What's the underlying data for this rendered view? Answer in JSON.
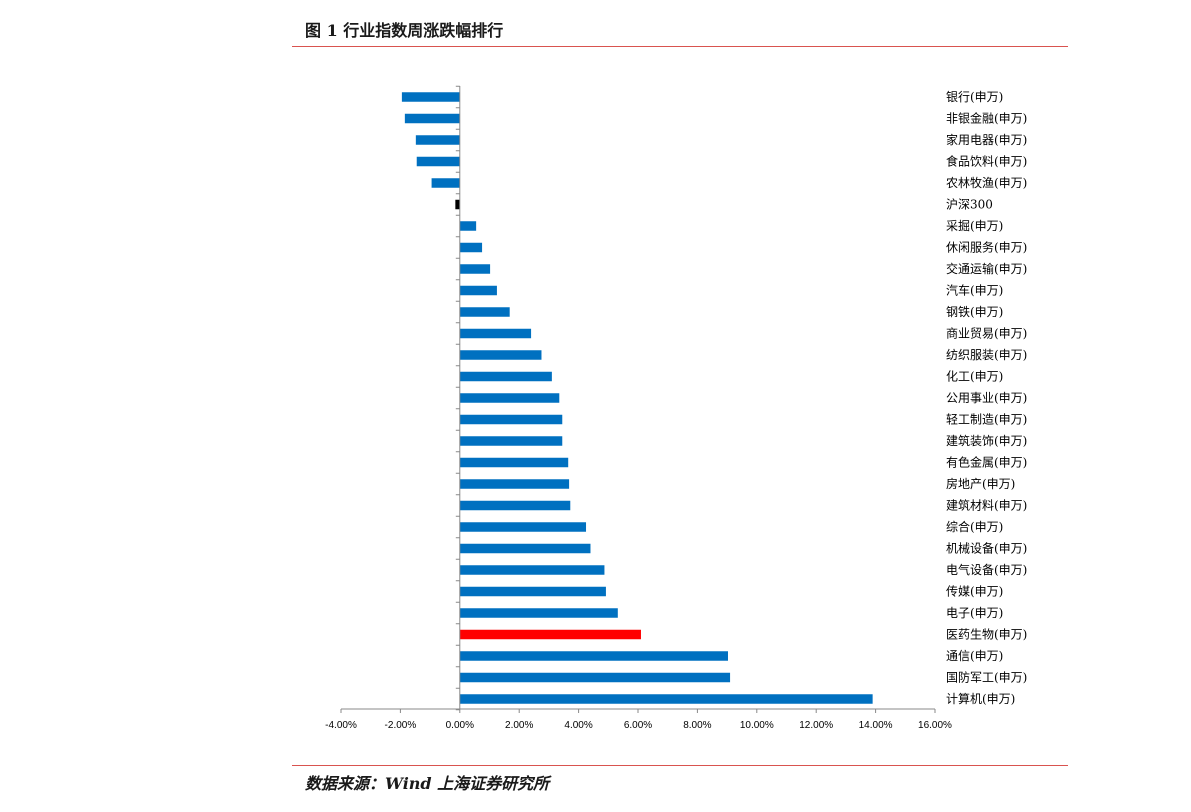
{
  "header": {
    "title": "图 1 行业指数周涨跌幅排行"
  },
  "footer": {
    "source": "数据来源：Wind  上海证券研究所"
  },
  "chart_data": {
    "type": "bar",
    "orientation": "horizontal",
    "title": "图 1 行业指数周涨跌幅排行",
    "xlim": [
      -0.04,
      0.16
    ],
    "x_ticks": [
      -0.04,
      -0.02,
      0.0,
      0.02,
      0.04,
      0.06,
      0.08,
      0.1,
      0.12,
      0.14,
      0.16
    ],
    "x_tick_labels": [
      "-4.00%",
      "-2.00%",
      "0.00%",
      "2.00%",
      "4.00%",
      "6.00%",
      "8.00%",
      "10.00%",
      "12.00%",
      "14.00%",
      "16.00%"
    ],
    "grid": false,
    "colors": {
      "default": "#0070c0",
      "highlight": "#ff0000",
      "benchmark": "#000000"
    },
    "categories": [
      "银行(申万)",
      "非银金融(申万)",
      "家用电器(申万)",
      "食品饮料(申万)",
      "农林牧渔(申万)",
      "沪深300",
      "采掘(申万)",
      "休闲服务(申万)",
      "交通运输(申万)",
      "汽车(申万)",
      "钢铁(申万)",
      "商业贸易(申万)",
      "纺织服装(申万)",
      "化工(申万)",
      "公用事业(申万)",
      "轻工制造(申万)",
      "建筑装饰(申万)",
      "有色金属(申万)",
      "房地产(申万)",
      "建筑材料(申万)",
      "综合(申万)",
      "机械设备(申万)",
      "电气设备(申万)",
      "传媒(申万)",
      "电子(申万)",
      "医药生物(申万)",
      "通信(申万)",
      "国防军工(申万)",
      "计算机(申万)"
    ],
    "values": [
      -0.0195,
      -0.0185,
      -0.0148,
      -0.0145,
      -0.0095,
      -0.0015,
      0.0055,
      0.0075,
      0.0102,
      0.0125,
      0.0168,
      0.024,
      0.0275,
      0.031,
      0.0335,
      0.0345,
      0.0345,
      0.0365,
      0.0368,
      0.0372,
      0.0425,
      0.044,
      0.0487,
      0.0492,
      0.0532,
      0.061,
      0.0903,
      0.091,
      0.139
    ],
    "bar_colors": [
      "default",
      "default",
      "default",
      "default",
      "default",
      "benchmark",
      "default",
      "default",
      "default",
      "default",
      "default",
      "default",
      "default",
      "default",
      "default",
      "default",
      "default",
      "default",
      "default",
      "default",
      "default",
      "default",
      "default",
      "default",
      "default",
      "highlight",
      "default",
      "default",
      "default"
    ]
  }
}
